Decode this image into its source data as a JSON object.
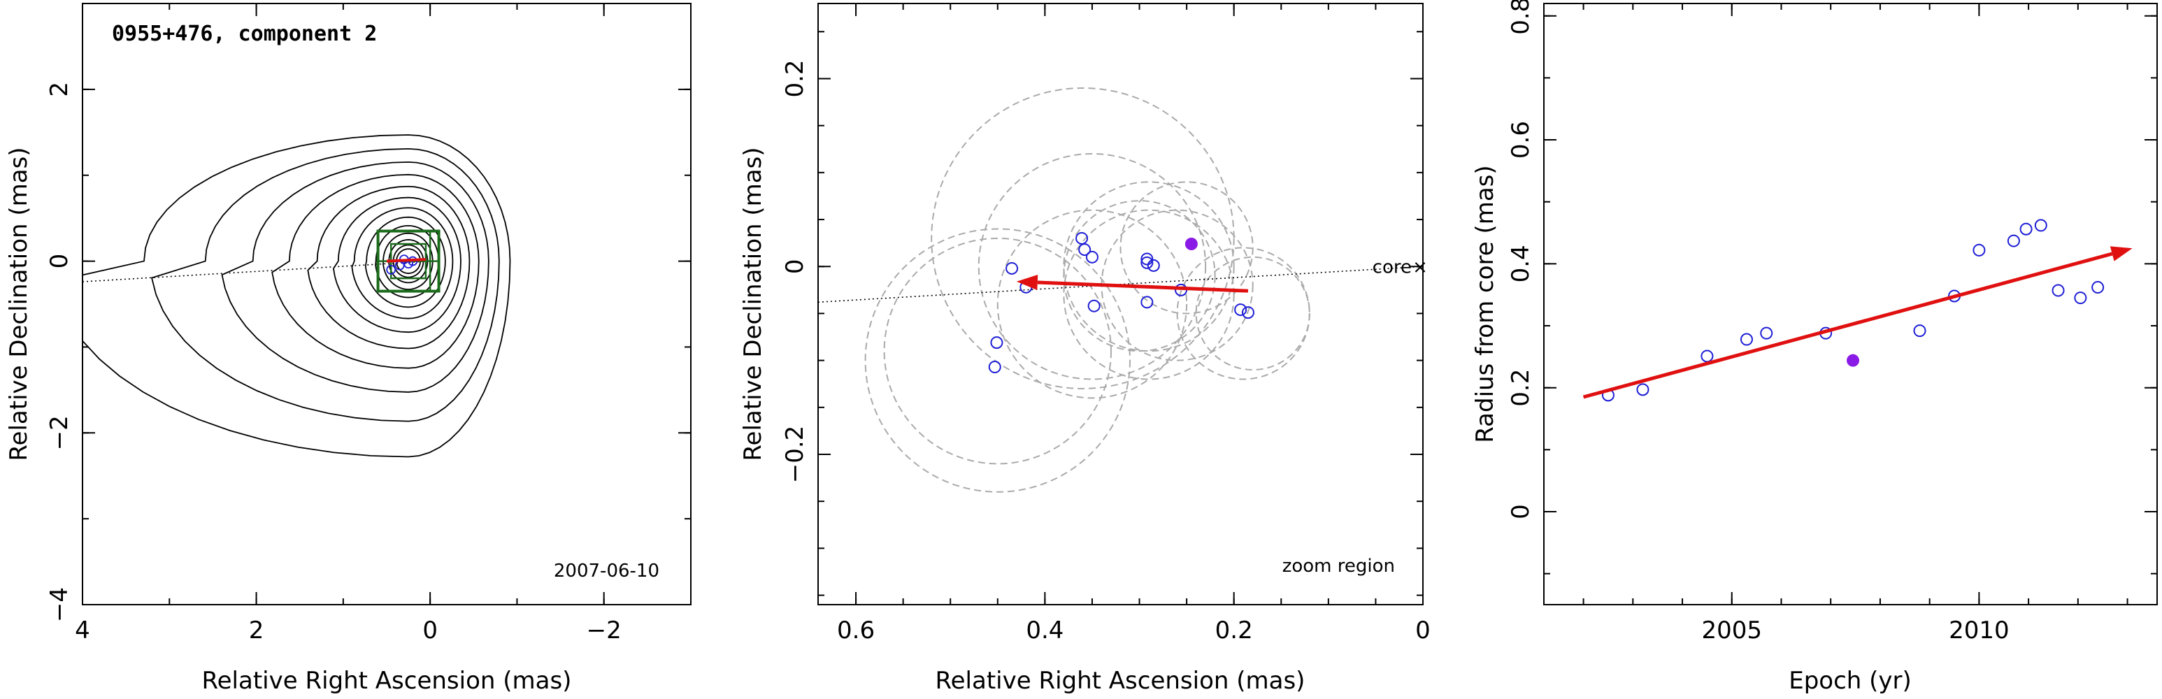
{
  "figure": {
    "colors": {
      "points": "#1f1fd6",
      "filled_point": "#8a1be6",
      "arrow": "#e01010",
      "contours": "#000000",
      "boxes": "#1a6b1a",
      "circles": "#aaaaaa",
      "ridge": "#000000"
    }
  },
  "chart_data": [
    {
      "type": "scatter",
      "panel": "left",
      "title": "0955+476, component 2",
      "annotation": "2007-06-10",
      "xlabel": "Relative Right Ascension (mas)",
      "ylabel": "Relative Declination (mas)",
      "xlim": [
        4,
        -3
      ],
      "ylim": [
        -4,
        3
      ],
      "xticks": [
        4,
        2,
        0,
        -2
      ],
      "xtick_labels": [
        "4",
        "2",
        "0",
        "−2"
      ],
      "yticks": [
        -4,
        -2,
        0,
        2
      ],
      "ytick_labels": [
        "−4",
        "−2",
        "0",
        "2"
      ],
      "contours": "image contours centered near (0.25, 0), extended toward positive RA and negative declination",
      "zoom_boxes": [
        "outer square ±0.35 mas around core",
        "inner square ±0.2 mas with crosshair"
      ],
      "points": [
        {
          "x": 0.45,
          "y": -0.1
        },
        {
          "x": 0.35,
          "y": -0.05
        },
        {
          "x": 0.3,
          "y": 0.02
        },
        {
          "x": 0.25,
          "y": -0.03
        },
        {
          "x": 0.2,
          "y": 0.0
        }
      ]
    },
    {
      "type": "scatter",
      "panel": "middle",
      "annotation": "zoom region",
      "core_label": "core",
      "xlabel": "Relative Right Ascension (mas)",
      "ylabel": "Relative Declination (mas)",
      "xlim": [
        0.64,
        0.0
      ],
      "ylim": [
        -0.36,
        0.28
      ],
      "xticks": [
        0.6,
        0.4,
        0.2,
        0
      ],
      "xtick_labels": [
        "0.6",
        "0.4",
        "0.2",
        "0"
      ],
      "yticks": [
        -0.2,
        0,
        0.2
      ],
      "ytick_labels": [
        "−0.2",
        "0",
        "0.2"
      ],
      "open_points": [
        {
          "x": 0.435,
          "y": -0.002
        },
        {
          "x": 0.42,
          "y": -0.022
        },
        {
          "x": 0.451,
          "y": -0.081
        },
        {
          "x": 0.453,
          "y": -0.107
        },
        {
          "x": 0.361,
          "y": 0.03
        },
        {
          "x": 0.358,
          "y": 0.018
        },
        {
          "x": 0.35,
          "y": 0.01
        },
        {
          "x": 0.348,
          "y": -0.042
        },
        {
          "x": 0.292,
          "y": 0.008
        },
        {
          "x": 0.292,
          "y": 0.004
        },
        {
          "x": 0.285,
          "y": 0.001
        },
        {
          "x": 0.292,
          "y": -0.038
        },
        {
          "x": 0.256,
          "y": -0.025
        },
        {
          "x": 0.193,
          "y": -0.046
        },
        {
          "x": 0.185,
          "y": -0.049
        }
      ],
      "filled_points": [
        {
          "x": 0.245,
          "y": 0.024
        }
      ],
      "circles": [
        {
          "x": 0.45,
          "y": -0.1,
          "r": 0.14
        },
        {
          "x": 0.45,
          "y": -0.09,
          "r": 0.12
        },
        {
          "x": 0.36,
          "y": 0.03,
          "r": 0.16
        },
        {
          "x": 0.35,
          "y": 0.0,
          "r": 0.12
        },
        {
          "x": 0.35,
          "y": -0.04,
          "r": 0.1
        },
        {
          "x": 0.29,
          "y": 0.0,
          "r": 0.09
        },
        {
          "x": 0.29,
          "y": -0.03,
          "r": 0.09
        },
        {
          "x": 0.26,
          "y": -0.02,
          "r": 0.08
        },
        {
          "x": 0.25,
          "y": 0.02,
          "r": 0.07
        },
        {
          "x": 0.19,
          "y": -0.05,
          "r": 0.07
        },
        {
          "x": 0.18,
          "y": -0.05,
          "r": 0.06
        },
        {
          "x": 0.3,
          "y": -0.01,
          "r": 0.08
        }
      ],
      "arrow": {
        "from": [
          0.185,
          -0.026
        ],
        "to": [
          0.43,
          -0.016
        ]
      },
      "core": {
        "x": 0.0,
        "y": 0.0
      },
      "ridge_line": {
        "from": [
          0.64,
          -0.038
        ],
        "to": [
          0.0,
          0.0
        ]
      }
    },
    {
      "type": "scatter",
      "panel": "right",
      "xlabel": "Epoch (yr)",
      "ylabel": "Radius from core (mas)",
      "xlim": [
        2001.2,
        2013.6
      ],
      "ylim": [
        -0.15,
        0.82
      ],
      "xticks": [
        2005,
        2010
      ],
      "xtick_labels": [
        "2005",
        "2010"
      ],
      "yticks": [
        0,
        0.2,
        0.4,
        0.6,
        0.8
      ],
      "ytick_labels": [
        "0",
        "0.2",
        "0.4",
        "0.6",
        "0.8"
      ],
      "open_points": [
        {
          "x": 2002.5,
          "y": 0.188
        },
        {
          "x": 2003.2,
          "y": 0.197
        },
        {
          "x": 2004.5,
          "y": 0.251
        },
        {
          "x": 2005.3,
          "y": 0.278
        },
        {
          "x": 2005.7,
          "y": 0.288
        },
        {
          "x": 2006.9,
          "y": 0.288
        },
        {
          "x": 2008.8,
          "y": 0.292
        },
        {
          "x": 2009.5,
          "y": 0.348
        },
        {
          "x": 2010.0,
          "y": 0.422
        },
        {
          "x": 2010.7,
          "y": 0.437
        },
        {
          "x": 2010.95,
          "y": 0.456
        },
        {
          "x": 2011.25,
          "y": 0.462
        },
        {
          "x": 2011.6,
          "y": 0.357
        },
        {
          "x": 2012.05,
          "y": 0.345
        },
        {
          "x": 2012.4,
          "y": 0.362
        }
      ],
      "filled_points": [
        {
          "x": 2007.45,
          "y": 0.244
        }
      ],
      "fit_arrow": {
        "from": [
          2002.0,
          0.185
        ],
        "to": [
          2013.1,
          0.425
        ]
      }
    }
  ]
}
